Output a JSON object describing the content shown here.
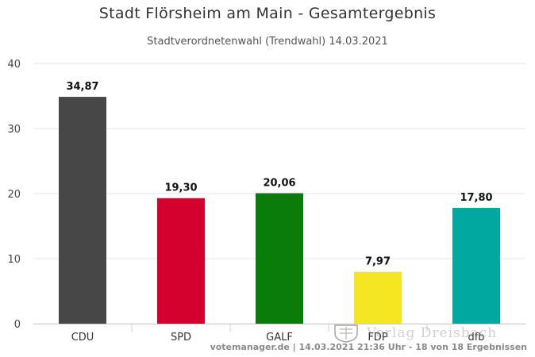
{
  "header": {
    "title": "Stadt Flörsheim am Main - Gesamtergebnis",
    "subtitle": "Stadtverordnetenwahl (Trendwahl) 14.03.2021"
  },
  "footer": {
    "credits": "votemanager.de | 14.03.2021 21:36 Uhr - 18 von 18 Ergebnissen"
  },
  "watermark": {
    "text": "Verlag Dreisbach"
  },
  "chart_data": {
    "type": "bar",
    "categories": [
      "CDU",
      "SPD",
      "GALF",
      "FDP",
      "dfb"
    ],
    "values": [
      34.87,
      19.3,
      20.06,
      7.97,
      17.8
    ],
    "value_labels": [
      "34,87",
      "19,30",
      "20,06",
      "7,97",
      "17,80"
    ],
    "colors": [
      "#474747",
      "#d4002d",
      "#0a7c0a",
      "#f5e624",
      "#00a8a0"
    ],
    "ylim": [
      0,
      40
    ],
    "yticks": [
      0,
      10,
      20,
      30,
      40
    ],
    "grid": true,
    "legend": "none"
  }
}
